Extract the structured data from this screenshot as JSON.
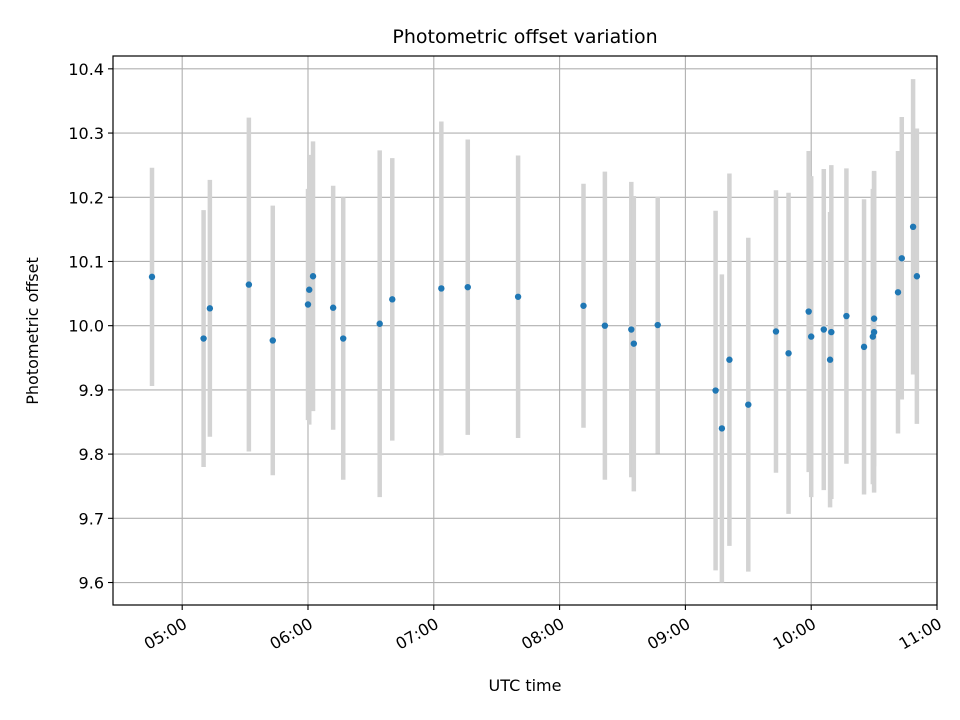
{
  "chart_data": {
    "type": "scatter",
    "title": "Photometric offset variation",
    "xlabel": "UTC time",
    "ylabel": "Photometric offset",
    "x_axis": {
      "unit": "hours (UTC)",
      "range": [
        4.45,
        11.0
      ],
      "ticks": [
        {
          "value": 5,
          "label": "05:00"
        },
        {
          "value": 6,
          "label": "06:00"
        },
        {
          "value": 7,
          "label": "07:00"
        },
        {
          "value": 8,
          "label": "08:00"
        },
        {
          "value": 9,
          "label": "09:00"
        },
        {
          "value": 10,
          "label": "10:00"
        },
        {
          "value": 11,
          "label": "11:00"
        }
      ],
      "tick_rotation": "30 degrees"
    },
    "y_axis": {
      "range": [
        9.565,
        10.42
      ],
      "ticks": [
        {
          "value": 9.6,
          "label": "9.6"
        },
        {
          "value": 9.7,
          "label": "9.7"
        },
        {
          "value": 9.8,
          "label": "9.8"
        },
        {
          "value": 9.9,
          "label": "9.9"
        },
        {
          "value": 10.0,
          "label": "10.0"
        },
        {
          "value": 10.1,
          "label": "10.1"
        },
        {
          "value": 10.2,
          "label": "10.2"
        },
        {
          "value": 10.3,
          "label": "10.3"
        },
        {
          "value": 10.4,
          "label": "10.4"
        }
      ]
    },
    "grid": true,
    "legend": "none",
    "point_color": "#1f77b4",
    "errorbar_color": "#d3d3d3",
    "points": [
      {
        "x": 4.76,
        "y": 10.076,
        "err": 0.17
      },
      {
        "x": 5.17,
        "y": 9.98,
        "err": 0.2
      },
      {
        "x": 5.22,
        "y": 10.027,
        "err": 0.2
      },
      {
        "x": 5.53,
        "y": 10.064,
        "err": 0.26
      },
      {
        "x": 5.72,
        "y": 9.977,
        "err": 0.21
      },
      {
        "x": 6.0,
        "y": 10.033,
        "err": 0.18
      },
      {
        "x": 6.01,
        "y": 10.056,
        "err": 0.21
      },
      {
        "x": 6.04,
        "y": 10.077,
        "err": 0.21
      },
      {
        "x": 6.2,
        "y": 10.028,
        "err": 0.19
      },
      {
        "x": 6.28,
        "y": 9.98,
        "err": 0.22
      },
      {
        "x": 6.57,
        "y": 10.003,
        "err": 0.27
      },
      {
        "x": 6.67,
        "y": 10.041,
        "err": 0.22
      },
      {
        "x": 7.06,
        "y": 10.058,
        "err": 0.26
      },
      {
        "x": 7.27,
        "y": 10.06,
        "err": 0.23
      },
      {
        "x": 7.67,
        "y": 10.045,
        "err": 0.22
      },
      {
        "x": 8.19,
        "y": 10.031,
        "err": 0.19
      },
      {
        "x": 8.36,
        "y": 10.0,
        "err": 0.24
      },
      {
        "x": 8.57,
        "y": 9.994,
        "err": 0.23
      },
      {
        "x": 8.59,
        "y": 9.972,
        "err": 0.23
      },
      {
        "x": 8.78,
        "y": 10.001,
        "err": 0.2
      },
      {
        "x": 9.24,
        "y": 9.899,
        "err": 0.28
      },
      {
        "x": 9.29,
        "y": 9.84,
        "err": 0.24
      },
      {
        "x": 9.35,
        "y": 9.947,
        "err": 0.29
      },
      {
        "x": 9.5,
        "y": 9.877,
        "err": 0.26
      },
      {
        "x": 9.72,
        "y": 9.991,
        "err": 0.22
      },
      {
        "x": 9.82,
        "y": 9.957,
        "err": 0.25
      },
      {
        "x": 9.98,
        "y": 10.022,
        "err": 0.25
      },
      {
        "x": 10.0,
        "y": 9.983,
        "err": 0.25
      },
      {
        "x": 10.1,
        "y": 9.994,
        "err": 0.25
      },
      {
        "x": 10.15,
        "y": 9.947,
        "err": 0.23
      },
      {
        "x": 10.16,
        "y": 9.99,
        "err": 0.26
      },
      {
        "x": 10.28,
        "y": 10.015,
        "err": 0.23
      },
      {
        "x": 10.42,
        "y": 9.967,
        "err": 0.23
      },
      {
        "x": 10.49,
        "y": 9.983,
        "err": 0.23
      },
      {
        "x": 10.5,
        "y": 9.99,
        "err": 0.25
      },
      {
        "x": 10.5,
        "y": 10.011,
        "err": 0.23
      },
      {
        "x": 10.69,
        "y": 10.052,
        "err": 0.22
      },
      {
        "x": 10.72,
        "y": 10.105,
        "err": 0.22
      },
      {
        "x": 10.81,
        "y": 10.154,
        "err": 0.23
      },
      {
        "x": 10.84,
        "y": 10.077,
        "err": 0.23
      }
    ]
  }
}
